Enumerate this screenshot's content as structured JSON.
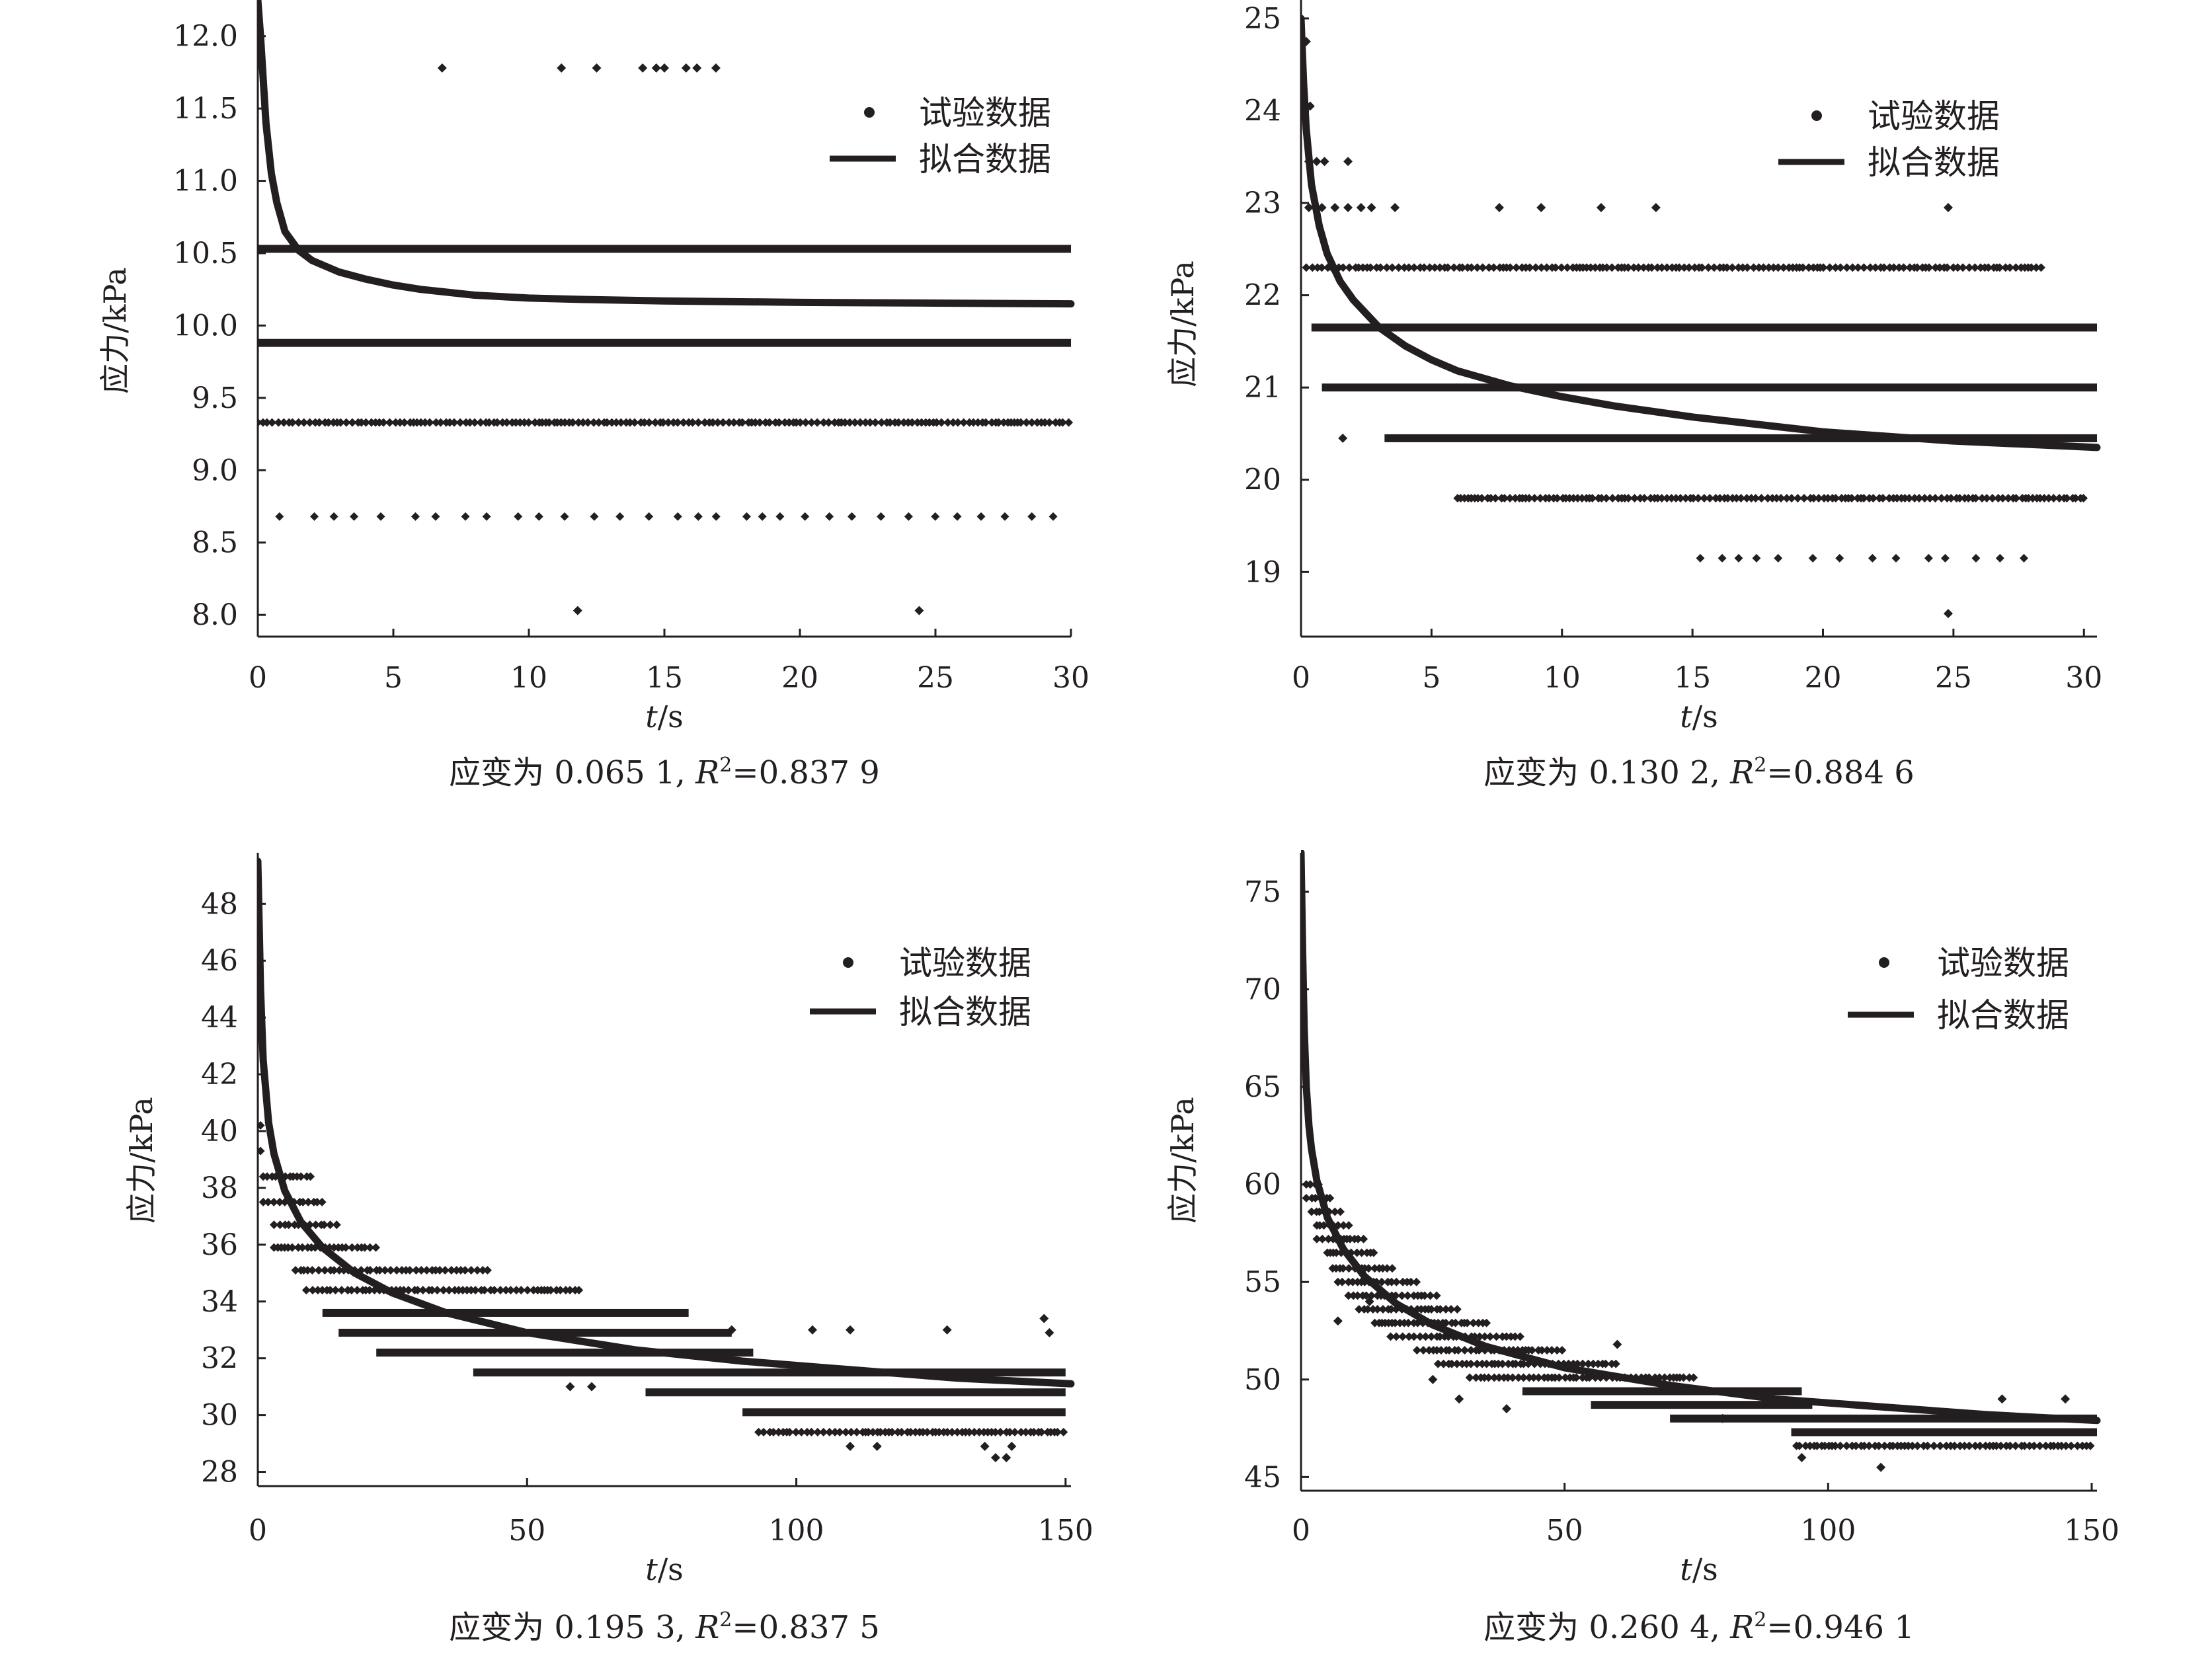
{
  "legend": {
    "scatter_label": "试验数据",
    "line_label": "拟合数据"
  },
  "colors": {
    "ink": "#231f20",
    "background": "#ffffff"
  },
  "chart_data": [
    {
      "type": "scatter",
      "title": "",
      "caption": {
        "prefix": "应变为 0.065 1, ",
        "r_symbol": "R",
        "suffix": "=0.837 9"
      },
      "xlabel": "t/s",
      "ylabel": "应力/kPa",
      "xlim": [
        0,
        30
      ],
      "ylim": [
        7.85,
        12.25
      ],
      "xticks": [
        "0",
        "5",
        "10",
        "15",
        "20",
        "25",
        "30"
      ],
      "yticks": [
        "8.0",
        "8.5",
        "9.0",
        "9.5",
        "10.0",
        "10.5",
        "11.0",
        "11.5",
        "12.0"
      ],
      "legend_position": "top-right",
      "grid": false,
      "series": [
        {
          "name": "试验数据",
          "kind": "scatter",
          "levels": [
            {
              "y": 10.53,
              "x_range": [
                0,
                30
              ],
              "density": "continuous"
            },
            {
              "y": 9.88,
              "x_range": [
                0,
                30
              ],
              "density": "continuous"
            },
            {
              "y": 9.33,
              "x_range": [
                0,
                30
              ],
              "density": "dense"
            },
            {
              "y": 8.68,
              "x_range": [
                0.8,
                30
              ],
              "density": "sparse"
            }
          ],
          "points": [
            {
              "x": 6.8,
              "y": 11.78
            },
            {
              "x": 11.2,
              "y": 11.78
            },
            {
              "x": 12.5,
              "y": 11.78
            },
            {
              "x": 14.2,
              "y": 11.78
            },
            {
              "x": 14.7,
              "y": 11.78
            },
            {
              "x": 15.0,
              "y": 11.78
            },
            {
              "x": 15.8,
              "y": 11.78
            },
            {
              "x": 16.2,
              "y": 11.78
            },
            {
              "x": 16.9,
              "y": 11.78
            },
            {
              "x": 11.8,
              "y": 8.03
            },
            {
              "x": 24.4,
              "y": 8.03
            }
          ]
        },
        {
          "name": "拟合数据",
          "kind": "line",
          "x": [
            0.0,
            0.1,
            0.2,
            0.3,
            0.5,
            0.7,
            1.0,
            1.5,
            2,
            3,
            4,
            5,
            6,
            8,
            10,
            12,
            15,
            20,
            25,
            30
          ],
          "y": [
            12.25,
            12.0,
            11.7,
            11.4,
            11.05,
            10.85,
            10.65,
            10.52,
            10.45,
            10.37,
            10.32,
            10.28,
            10.25,
            10.21,
            10.19,
            10.18,
            10.17,
            10.16,
            10.155,
            10.15
          ]
        }
      ]
    },
    {
      "type": "scatter",
      "title": "",
      "caption": {
        "prefix": "应变为 0.130 2, ",
        "r_symbol": "R",
        "suffix": "=0.884 6"
      },
      "xlabel": "t/s",
      "ylabel": "应力/kPa",
      "xlim": [
        0,
        30.5
      ],
      "ylim": [
        18.3,
        25.2
      ],
      "xticks": [
        "0",
        "5",
        "10",
        "15",
        "20",
        "25",
        "30"
      ],
      "yticks": [
        "19",
        "20",
        "21",
        "22",
        "23",
        "24",
        "25"
      ],
      "legend_position": "top-right",
      "grid": false,
      "series": [
        {
          "name": "试验数据",
          "kind": "scatter",
          "levels": [
            {
              "y": 22.3,
              "x_range": [
                0.2,
                28.5
              ],
              "density": "dense"
            },
            {
              "y": 21.65,
              "x_range": [
                0.4,
                30.5
              ],
              "density": "continuous"
            },
            {
              "y": 21.0,
              "x_range": [
                0.8,
                30.5
              ],
              "density": "continuous"
            },
            {
              "y": 20.45,
              "x_range": [
                3.2,
                30.5
              ],
              "density": "continuous"
            },
            {
              "y": 19.8,
              "x_range": [
                6,
                30
              ],
              "density": "dense"
            },
            {
              "y": 19.15,
              "x_range": [
                15.3,
                28.5
              ],
              "density": "sparse"
            }
          ],
          "points": [
            {
              "x": 0.2,
              "y": 24.75
            },
            {
              "x": 0.35,
              "y": 24.05
            },
            {
              "x": 0.3,
              "y": 23.45
            },
            {
              "x": 0.6,
              "y": 23.45
            },
            {
              "x": 0.9,
              "y": 23.45
            },
            {
              "x": 1.8,
              "y": 23.45
            },
            {
              "x": 0.3,
              "y": 22.95
            },
            {
              "x": 0.8,
              "y": 22.95
            },
            {
              "x": 1.3,
              "y": 22.95
            },
            {
              "x": 1.8,
              "y": 22.95
            },
            {
              "x": 2.3,
              "y": 22.95
            },
            {
              "x": 2.7,
              "y": 22.95
            },
            {
              "x": 3.6,
              "y": 22.95
            },
            {
              "x": 7.6,
              "y": 22.95
            },
            {
              "x": 9.2,
              "y": 22.95
            },
            {
              "x": 11.5,
              "y": 22.95
            },
            {
              "x": 13.6,
              "y": 22.95
            },
            {
              "x": 24.8,
              "y": 22.95
            },
            {
              "x": 1.6,
              "y": 20.45
            },
            {
              "x": 24.8,
              "y": 18.55
            }
          ]
        },
        {
          "name": "拟合数据",
          "kind": "line",
          "x": [
            0.0,
            0.1,
            0.2,
            0.4,
            0.7,
            1.0,
            1.5,
            2,
            3,
            4,
            5,
            6,
            8,
            10,
            12,
            15,
            20,
            25,
            30.5
          ],
          "y": [
            25.0,
            24.3,
            23.8,
            23.2,
            22.75,
            22.45,
            22.15,
            21.95,
            21.65,
            21.45,
            21.3,
            21.18,
            21.02,
            20.9,
            20.8,
            20.68,
            20.52,
            20.42,
            20.35
          ]
        }
      ]
    },
    {
      "type": "scatter",
      "title": "",
      "caption": {
        "prefix": "应变为 0.195 3, ",
        "r_symbol": "R",
        "suffix": "=0.837 5"
      },
      "xlabel": "t/s",
      "ylabel": "应力/kPa",
      "xlim": [
        0,
        151
      ],
      "ylim": [
        27.5,
        49.8
      ],
      "xticks": [
        "0",
        "50",
        "100",
        "150"
      ],
      "yticks": [
        "28",
        "30",
        "32",
        "34",
        "36",
        "38",
        "40",
        "42",
        "44",
        "46",
        "48"
      ],
      "legend_position": "top-right",
      "grid": false,
      "series": [
        {
          "name": "试验数据",
          "kind": "scatter",
          "levels": [
            {
              "y": 40.2,
              "x_range": [
                0.5,
                3
              ],
              "density": "sparse"
            },
            {
              "y": 39.3,
              "x_range": [
                0.5,
                6
              ],
              "density": "sparse"
            },
            {
              "y": 38.4,
              "x_range": [
                1,
                10
              ],
              "density": "dense"
            },
            {
              "y": 37.5,
              "x_range": [
                1,
                12
              ],
              "density": "dense"
            },
            {
              "y": 36.7,
              "x_range": [
                3,
                15
              ],
              "density": "dense"
            },
            {
              "y": 35.9,
              "x_range": [
                3,
                22
              ],
              "density": "dense"
            },
            {
              "y": 35.1,
              "x_range": [
                7,
                43
              ],
              "density": "dense"
            },
            {
              "y": 34.4,
              "x_range": [
                9,
                60
              ],
              "density": "dense"
            },
            {
              "y": 33.6,
              "x_range": [
                12,
                80
              ],
              "density": "continuous"
            },
            {
              "y": 32.9,
              "x_range": [
                15,
                88
              ],
              "density": "continuous"
            },
            {
              "y": 32.2,
              "x_range": [
                22,
                92
              ],
              "density": "continuous"
            },
            {
              "y": 31.5,
              "x_range": [
                40,
                150
              ],
              "density": "continuous"
            },
            {
              "y": 30.8,
              "x_range": [
                72,
                150
              ],
              "density": "continuous"
            },
            {
              "y": 30.1,
              "x_range": [
                90,
                150
              ],
              "density": "continuous"
            },
            {
              "y": 29.4,
              "x_range": [
                93,
                150
              ],
              "density": "dense"
            }
          ],
          "points": [
            {
              "x": 58,
              "y": 31.0
            },
            {
              "x": 62,
              "y": 31.0
            },
            {
              "x": 88,
              "y": 33.0
            },
            {
              "x": 103,
              "y": 33.0
            },
            {
              "x": 110,
              "y": 33.0
            },
            {
              "x": 128,
              "y": 33.0
            },
            {
              "x": 110,
              "y": 28.9
            },
            {
              "x": 115,
              "y": 28.9
            },
            {
              "x": 135,
              "y": 28.9
            },
            {
              "x": 140,
              "y": 28.9
            },
            {
              "x": 137,
              "y": 28.5
            },
            {
              "x": 139,
              "y": 28.5
            },
            {
              "x": 146,
              "y": 33.4
            },
            {
              "x": 147,
              "y": 32.9
            }
          ]
        },
        {
          "name": "拟合数据",
          "kind": "line",
          "x": [
            0,
            0.5,
            1,
            2,
            3,
            5,
            8,
            12,
            18,
            25,
            35,
            50,
            70,
            90,
            110,
            130,
            151
          ],
          "y": [
            49.5,
            45.0,
            42.5,
            40.3,
            39.2,
            37.9,
            36.8,
            35.9,
            35.0,
            34.3,
            33.6,
            32.9,
            32.3,
            31.9,
            31.6,
            31.3,
            31.1
          ]
        }
      ]
    },
    {
      "type": "scatter",
      "title": "",
      "caption": {
        "prefix": "应变为 0.260 4, ",
        "r_symbol": "R",
        "suffix": "=0.946 1"
      },
      "xlabel": "t/s",
      "ylabel": "应力/kPa",
      "xlim": [
        0,
        151
      ],
      "ylim": [
        44.3,
        77.0
      ],
      "xticks": [
        "0",
        "50",
        "100",
        "150"
      ],
      "yticks": [
        "45",
        "50",
        "55",
        "60",
        "65",
        "70",
        "75"
      ],
      "legend_position": "top-right",
      "grid": false,
      "series": [
        {
          "name": "试验数据",
          "kind": "scatter",
          "levels": [
            {
              "y": 60.0,
              "x_range": [
                1,
                4
              ],
              "density": "dense"
            },
            {
              "y": 59.3,
              "x_range": [
                1,
                6
              ],
              "density": "dense"
            },
            {
              "y": 58.6,
              "x_range": [
                2,
                8
              ],
              "density": "dense"
            },
            {
              "y": 57.9,
              "x_range": [
                3,
                10
              ],
              "density": "dense"
            },
            {
              "y": 57.2,
              "x_range": [
                3,
                12
              ],
              "density": "dense"
            },
            {
              "y": 56.5,
              "x_range": [
                5,
                14
              ],
              "density": "dense"
            },
            {
              "y": 55.7,
              "x_range": [
                6,
                18
              ],
              "density": "dense"
            },
            {
              "y": 55.0,
              "x_range": [
                7,
                22
              ],
              "density": "dense"
            },
            {
              "y": 54.3,
              "x_range": [
                9,
                26
              ],
              "density": "dense"
            },
            {
              "y": 53.6,
              "x_range": [
                11,
                30
              ],
              "density": "dense"
            },
            {
              "y": 52.9,
              "x_range": [
                14,
                36
              ],
              "density": "dense"
            },
            {
              "y": 52.2,
              "x_range": [
                17,
                42
              ],
              "density": "dense"
            },
            {
              "y": 51.5,
              "x_range": [
                22,
                50
              ],
              "density": "dense"
            },
            {
              "y": 50.8,
              "x_range": [
                26,
                60
              ],
              "density": "dense"
            },
            {
              "y": 50.1,
              "x_range": [
                32,
                75
              ],
              "density": "dense"
            },
            {
              "y": 49.4,
              "x_range": [
                42,
                95
              ],
              "density": "continuous"
            },
            {
              "y": 48.7,
              "x_range": [
                55,
                97
              ],
              "density": "continuous"
            },
            {
              "y": 48.0,
              "x_range": [
                70,
                151
              ],
              "density": "continuous"
            },
            {
              "y": 47.3,
              "x_range": [
                93,
                151
              ],
              "density": "continuous"
            },
            {
              "y": 46.6,
              "x_range": [
                94,
                150
              ],
              "density": "dense"
            }
          ],
          "points": [
            {
              "x": 7,
              "y": 53.0
            },
            {
              "x": 13,
              "y": 54.0
            },
            {
              "x": 25,
              "y": 50.0
            },
            {
              "x": 30,
              "y": 49.0
            },
            {
              "x": 39,
              "y": 48.5
            },
            {
              "x": 60,
              "y": 51.8
            },
            {
              "x": 80,
              "y": 48.0
            },
            {
              "x": 95,
              "y": 46.0
            },
            {
              "x": 110,
              "y": 45.5
            },
            {
              "x": 133,
              "y": 49.0
            },
            {
              "x": 145,
              "y": 49.0
            }
          ]
        },
        {
          "name": "拟合数据",
          "kind": "line",
          "x": [
            0,
            0.3,
            0.6,
            1,
            1.5,
            2,
            3,
            5,
            8,
            12,
            18,
            25,
            35,
            50,
            70,
            90,
            110,
            130,
            151
          ],
          "y": [
            77.0,
            72.0,
            68.0,
            65.0,
            63.0,
            61.8,
            60.2,
            58.3,
            56.7,
            55.3,
            53.9,
            52.8,
            51.7,
            50.6,
            49.7,
            49.0,
            48.6,
            48.2,
            47.9
          ]
        }
      ]
    }
  ]
}
